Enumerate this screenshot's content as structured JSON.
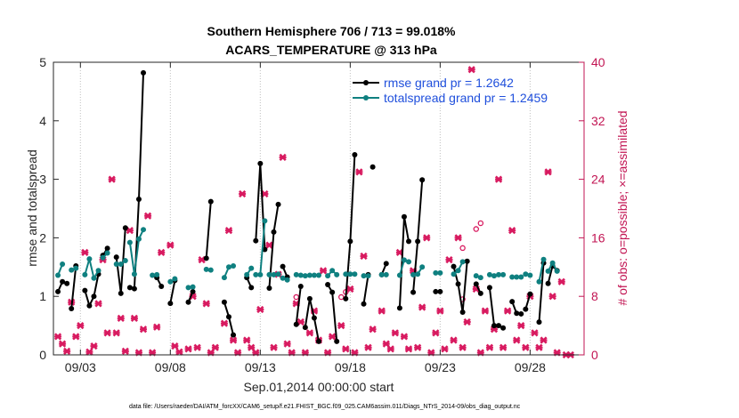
{
  "chart_data": {
    "type": "line",
    "title": "Southern Hemisphere 706 / 713 = 99.018%",
    "subtitle": "ACARS_TEMPERATURE @ 313 hPa",
    "xlabel": "Sep.01,2014 00:00:00 start",
    "ylabel": "rmse and totalspread",
    "y2label": "# of obs: o=possible; ×=assimilated",
    "footer": "data file: /Users/raeder/DAI/ATM_forcXX/CAM6_setup/f.e21.FHIST_BGC.f09_025.CAM6assim.011/Diags_NTrS_2014-09/obs_diag_output.nc",
    "xlim": [
      1.5,
      31.0
    ],
    "ylim": [
      0,
      5
    ],
    "y2lim": [
      0,
      40
    ],
    "x_ticks": [
      3,
      8,
      13,
      18,
      23,
      28
    ],
    "x_tick_labels": [
      "09/03",
      "09/08",
      "09/13",
      "09/18",
      "09/23",
      "09/28"
    ],
    "y_ticks": [
      0,
      1,
      2,
      3,
      4,
      5
    ],
    "y2_ticks": [
      0,
      8,
      16,
      24,
      32,
      40
    ],
    "legend": {
      "position": "top-right",
      "entries": [
        {
          "label": "rmse grand pr = 1.2642",
          "series": "rmse"
        },
        {
          "label": "totalspread grand pr = 1.2459",
          "series": "totalspread"
        }
      ]
    },
    "series": [
      {
        "name": "rmse",
        "color": "#000000",
        "segments": [
          [
            [
              1.75,
              1.08
            ],
            [
              2.0,
              1.25
            ],
            [
              2.25,
              1.22
            ]
          ],
          [
            [
              2.5,
              0.79
            ],
            [
              2.75,
              1.52
            ]
          ],
          [
            [
              3.25,
              1.1
            ],
            [
              3.5,
              0.84
            ],
            [
              3.75,
              1.0
            ],
            [
              4.0,
              1.38
            ]
          ],
          [
            [
              4.25,
              1.7
            ],
            [
              4.5,
              1.82
            ]
          ],
          [
            [
              5.0,
              1.67
            ],
            [
              5.25,
              1.05
            ],
            [
              5.5,
              2.17
            ]
          ],
          [
            [
              5.75,
              1.15
            ],
            [
              6.0,
              1.13
            ],
            [
              6.25,
              2.66
            ],
            [
              6.5,
              4.82
            ]
          ],
          [
            [
              7.25,
              1.32
            ],
            [
              7.5,
              1.17
            ]
          ],
          [
            [
              8.0,
              0.88
            ],
            [
              8.25,
              1.27
            ]
          ],
          [
            [
              9.0,
              0.9
            ],
            [
              9.25,
              1.08
            ]
          ],
          [
            [
              10.0,
              1.65
            ],
            [
              10.25,
              2.62
            ]
          ],
          [
            [
              11.0,
              0.9
            ],
            [
              11.25,
              0.65
            ],
            [
              11.5,
              0.34
            ]
          ],
          [
            [
              12.25,
              1.32
            ],
            [
              12.5,
              1.15
            ]
          ],
          [
            [
              12.75,
              1.95
            ],
            [
              13.0,
              3.27
            ],
            [
              13.25,
              1.8
            ]
          ],
          [
            [
              13.5,
              1.14
            ],
            [
              13.75,
              2.1
            ],
            [
              14.0,
              2.57
            ]
          ],
          [
            [
              14.25,
              1.51
            ],
            [
              14.5,
              1.33
            ]
          ],
          [
            [
              15.0,
              0.52
            ],
            [
              15.25,
              1.17
            ]
          ],
          [
            [
              15.5,
              0.47
            ],
            [
              15.75,
              0.96
            ],
            [
              16.0,
              0.63
            ],
            [
              16.25,
              0.23
            ]
          ],
          [
            [
              16.75,
              1.2
            ],
            [
              17.0,
              1.07
            ],
            [
              17.25,
              0.23
            ]
          ],
          [
            [
              17.75,
              0.96
            ],
            [
              18.0,
              1.94
            ],
            [
              18.25,
              3.42
            ]
          ],
          [
            [
              18.75,
              0.87
            ],
            [
              19.0,
              1.37
            ]
          ],
          [
            [
              19.25,
              3.21
            ]
          ],
          [
            [
              19.75,
              1.37
            ],
            [
              20.0,
              1.56
            ]
          ],
          [
            [
              20.75,
              0.8
            ],
            [
              21.0,
              2.36
            ],
            [
              21.25,
              1.94
            ]
          ],
          [
            [
              21.5,
              1.07
            ],
            [
              21.75,
              1.94
            ],
            [
              22.0,
              2.99
            ]
          ],
          [
            [
              22.75,
              1.08
            ],
            [
              23.0,
              1.08
            ]
          ],
          [
            [
              23.75,
              1.51
            ],
            [
              24.0,
              1.21
            ],
            [
              24.25,
              0.73
            ],
            [
              24.5,
              1.6
            ]
          ],
          [
            [
              25.0,
              1.21
            ],
            [
              25.25,
              1.05
            ]
          ],
          [
            [
              25.75,
              1.15
            ],
            [
              26.0,
              0.5
            ],
            [
              26.25,
              0.5
            ],
            [
              26.5,
              0.46
            ]
          ],
          [
            [
              27.0,
              0.91
            ],
            [
              27.25,
              0.71
            ],
            [
              27.5,
              0.7
            ]
          ],
          [
            [
              27.75,
              0.78
            ],
            [
              28.0,
              1.04
            ]
          ],
          [
            [
              28.5,
              0.56
            ],
            [
              28.75,
              1.57
            ]
          ],
          [
            [
              29.0,
              1.22
            ],
            [
              29.25,
              1.52
            ],
            [
              29.5,
              1.44
            ]
          ]
        ]
      },
      {
        "name": "totalspread",
        "color": "#0f8080",
        "segments": [
          [
            [
              1.75,
              1.36
            ],
            [
              2.0,
              1.55
            ]
          ],
          [
            [
              2.5,
              1.45
            ],
            [
              2.75,
              1.48
            ]
          ],
          [
            [
              3.25,
              1.37
            ],
            [
              3.5,
              1.64
            ],
            [
              3.75,
              1.31
            ],
            [
              4.0,
              1.44
            ]
          ],
          [
            [
              4.25,
              1.66
            ],
            [
              4.5,
              1.74
            ]
          ],
          [
            [
              5.0,
              1.55
            ],
            [
              5.25,
              1.55
            ],
            [
              5.5,
              1.61
            ]
          ],
          [
            [
              5.75,
              1.92
            ],
            [
              6.0,
              1.38
            ],
            [
              6.25,
              1.98
            ],
            [
              6.5,
              2.14
            ]
          ],
          [
            [
              7.0,
              1.36
            ],
            [
              7.25,
              1.37
            ]
          ],
          [
            [
              8.0,
              1.25
            ],
            [
              8.25,
              1.3
            ]
          ],
          [
            [
              9.0,
              1.15
            ],
            [
              9.25,
              1.16
            ]
          ],
          [
            [
              10.0,
              1.46
            ],
            [
              10.25,
              1.45
            ]
          ],
          [
            [
              11.0,
              1.32
            ],
            [
              11.25,
              1.5
            ],
            [
              11.5,
              1.52
            ]
          ],
          [
            [
              12.25,
              1.37
            ],
            [
              12.5,
              1.48
            ]
          ],
          [
            [
              12.75,
              1.37
            ],
            [
              13.0,
              1.37
            ],
            [
              13.25,
              2.29
            ]
          ],
          [
            [
              13.5,
              1.37
            ],
            [
              13.75,
              1.37
            ],
            [
              14.0,
              1.38
            ]
          ],
          [
            [
              14.25,
              1.31
            ],
            [
              14.5,
              1.28
            ]
          ],
          [
            [
              15.0,
              1.37
            ],
            [
              15.25,
              1.36
            ]
          ],
          [
            [
              15.5,
              1.35
            ],
            [
              15.75,
              1.36
            ],
            [
              16.0,
              1.36
            ],
            [
              16.25,
              1.36
            ]
          ],
          [
            [
              16.75,
              1.35
            ],
            [
              17.0,
              1.44
            ],
            [
              17.25,
              1.37
            ]
          ],
          [
            [
              17.75,
              1.38
            ],
            [
              18.0,
              1.38
            ],
            [
              18.25,
              1.38
            ]
          ],
          [
            [
              18.75,
              1.35
            ],
            [
              19.0,
              1.35
            ]
          ],
          [
            [
              19.75,
              1.37
            ],
            [
              20.0,
              1.37
            ]
          ],
          [
            [
              20.75,
              1.36
            ],
            [
              21.0,
              1.62
            ],
            [
              21.25,
              1.59
            ]
          ],
          [
            [
              21.5,
              1.37
            ],
            [
              21.75,
              1.38
            ],
            [
              22.0,
              1.5
            ]
          ],
          [
            [
              22.75,
              1.4
            ],
            [
              23.0,
              1.4
            ]
          ],
          [
            [
              23.75,
              1.38
            ],
            [
              24.0,
              1.44
            ],
            [
              24.25,
              1.59
            ]
          ],
          [
            [
              25.0,
              1.35
            ],
            [
              25.25,
              1.32
            ]
          ],
          [
            [
              25.75,
              1.37
            ],
            [
              26.0,
              1.35
            ],
            [
              26.25,
              1.37
            ],
            [
              26.5,
              1.37
            ]
          ],
          [
            [
              27.0,
              1.33
            ],
            [
              27.25,
              1.33
            ],
            [
              27.5,
              1.33
            ]
          ],
          [
            [
              27.75,
              1.38
            ],
            [
              28.0,
              1.36
            ]
          ],
          [
            [
              28.5,
              1.25
            ],
            [
              28.75,
              1.63
            ]
          ],
          [
            [
              29.0,
              1.43
            ],
            [
              29.25,
              1.57
            ],
            [
              29.5,
              1.43
            ]
          ]
        ]
      }
    ],
    "obs_possible": [
      [
        15.0,
        7.9
      ],
      [
        17.75,
        8.6
      ],
      [
        17.5,
        7.9
      ],
      [
        24.25,
        7.6
      ],
      [
        24.25,
        14.6
      ],
      [
        25.0,
        17.2
      ],
      [
        25.25,
        18.0
      ]
    ],
    "obs_assimilated": [
      [
        1.75,
        2.5
      ],
      [
        2.0,
        1.5
      ],
      [
        2.25,
        0.5
      ],
      [
        2.5,
        7.2
      ],
      [
        2.75,
        2.5
      ],
      [
        3.0,
        4.0
      ],
      [
        3.25,
        14.0
      ],
      [
        3.5,
        0.4
      ],
      [
        3.75,
        1.2
      ],
      [
        4.0,
        7.0
      ],
      [
        4.25,
        13.0
      ],
      [
        4.5,
        3.0
      ],
      [
        4.75,
        24.0
      ],
      [
        5.0,
        3.0
      ],
      [
        5.25,
        5.0
      ],
      [
        5.5,
        0.5
      ],
      [
        5.75,
        17.0
      ],
      [
        6.0,
        5.0
      ],
      [
        6.25,
        0.3
      ],
      [
        6.5,
        3.5
      ],
      [
        6.75,
        19.0
      ],
      [
        7.0,
        0.3
      ],
      [
        7.25,
        3.8
      ],
      [
        7.5,
        14.0
      ],
      [
        8.0,
        15.0
      ],
      [
        8.25,
        1.2
      ],
      [
        8.5,
        0.4
      ],
      [
        9.0,
        0.8
      ],
      [
        9.25,
        8.0
      ],
      [
        9.5,
        1.0
      ],
      [
        9.75,
        13.0
      ],
      [
        10.0,
        7.0
      ],
      [
        10.25,
        0.3
      ],
      [
        10.5,
        1.0
      ],
      [
        11.0,
        4.3
      ],
      [
        11.25,
        17.0
      ],
      [
        11.5,
        2.0
      ],
      [
        11.75,
        0.3
      ],
      [
        12.0,
        22.0
      ],
      [
        12.25,
        2.0
      ],
      [
        12.5,
        1.0
      ],
      [
        12.75,
        0.3
      ],
      [
        13.0,
        6.2
      ],
      [
        13.25,
        22.0
      ],
      [
        13.5,
        15.0
      ],
      [
        13.75,
        1.0
      ],
      [
        14.0,
        11.0
      ],
      [
        14.25,
        27.0
      ],
      [
        14.5,
        1.5
      ],
      [
        14.75,
        0.3
      ],
      [
        15.0,
        7.0
      ],
      [
        15.25,
        4.5
      ],
      [
        15.5,
        0.3
      ],
      [
        15.75,
        3.0
      ],
      [
        16.0,
        6.0
      ],
      [
        16.25,
        2.0
      ],
      [
        16.5,
        11.5
      ],
      [
        16.75,
        0.3
      ],
      [
        17.0,
        2.5
      ],
      [
        17.5,
        4.0
      ],
      [
        17.75,
        0.8
      ],
      [
        18.0,
        9.0
      ],
      [
        18.25,
        0.3
      ],
      [
        18.5,
        25.0
      ],
      [
        18.75,
        13.5
      ],
      [
        19.0,
        1.0
      ],
      [
        19.25,
        3.5
      ],
      [
        19.75,
        6.0
      ],
      [
        20.0,
        1.5
      ],
      [
        20.25,
        0.8
      ],
      [
        20.5,
        3.0
      ],
      [
        20.75,
        14.0
      ],
      [
        21.0,
        2.5
      ],
      [
        21.25,
        0.8
      ],
      [
        21.5,
        11.5
      ],
      [
        21.75,
        1.0
      ],
      [
        22.0,
        6.5
      ],
      [
        22.25,
        16.0
      ],
      [
        22.5,
        0.3
      ],
      [
        22.75,
        3.0
      ],
      [
        23.0,
        6.0
      ],
      [
        23.25,
        0.8
      ],
      [
        23.5,
        13.0
      ],
      [
        23.75,
        2.0
      ],
      [
        24.0,
        16.0
      ],
      [
        24.25,
        1.0
      ],
      [
        24.5,
        4.5
      ],
      [
        24.75,
        39.0
      ],
      [
        25.0,
        9.0
      ],
      [
        25.25,
        0.3
      ],
      [
        25.5,
        6.0
      ],
      [
        25.75,
        1.0
      ],
      [
        26.0,
        3.5
      ],
      [
        26.25,
        24.0
      ],
      [
        26.5,
        1.0
      ],
      [
        26.75,
        6.0
      ],
      [
        27.0,
        17.0
      ],
      [
        27.25,
        2.0
      ],
      [
        27.5,
        4.0
      ],
      [
        27.75,
        1.0
      ],
      [
        28.0,
        8.0
      ],
      [
        28.25,
        3.0
      ],
      [
        28.5,
        1.0
      ],
      [
        28.75,
        2.0
      ],
      [
        29.0,
        25.0
      ],
      [
        29.25,
        8.0
      ],
      [
        29.5,
        0.3
      ],
      [
        29.75,
        10.0
      ],
      [
        30.0,
        0.0
      ],
      [
        30.25,
        0.0
      ]
    ]
  }
}
